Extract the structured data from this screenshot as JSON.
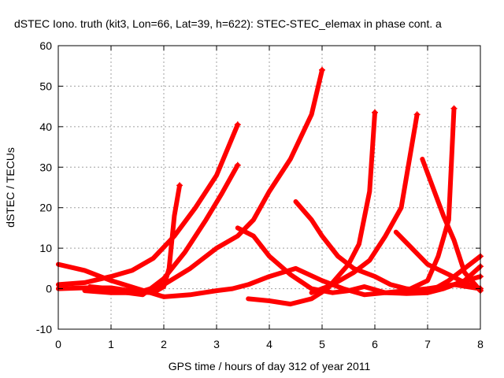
{
  "chart_data": {
    "type": "scatter",
    "title": "dSTEC Iono. truth (kit3, Lon=66, Lat=39, h=622): STEC-STEC_elemax in phase cont. a",
    "xlabel": "GPS time / hours of day 312 of year 2011",
    "ylabel": "dSTEC  / TECUs",
    "xlim": [
      0,
      8
    ],
    "ylim": [
      -10,
      60
    ],
    "xticks": [
      "0",
      "1",
      "2",
      "3",
      "4",
      "5",
      "6",
      "7",
      "8"
    ],
    "yticks": [
      "-10",
      "0",
      "10",
      "20",
      "30",
      "40",
      "50",
      "60"
    ],
    "grid": true,
    "color": "#ff0000",
    "series": [
      {
        "points": [
          [
            0,
            6
          ],
          [
            0.5,
            4.5
          ],
          [
            1,
            2
          ],
          [
            1.5,
            0
          ],
          [
            2,
            -2
          ],
          [
            2.5,
            -1.5
          ],
          [
            3,
            -0.5
          ],
          [
            3.3,
            0
          ],
          [
            3.6,
            1
          ],
          [
            4,
            3
          ],
          [
            4.5,
            5
          ],
          [
            5,
            2
          ],
          [
            5.4,
            0
          ],
          [
            5.8,
            -1.5
          ],
          [
            6.2,
            -1
          ],
          [
            6.6,
            -0.5
          ],
          [
            7,
            0
          ],
          [
            7.5,
            1
          ],
          [
            8,
            0
          ]
        ]
      },
      {
        "points": [
          [
            0,
            0
          ],
          [
            0.5,
            0.2
          ],
          [
            1,
            0.2
          ],
          [
            1.5,
            -0.8
          ],
          [
            1.8,
            -1
          ],
          [
            2,
            0.5
          ],
          [
            2.1,
            5
          ],
          [
            2.2,
            18
          ],
          [
            2.3,
            25.5
          ]
        ]
      },
      {
        "points": [
          [
            0,
            1
          ],
          [
            0.5,
            1.5
          ],
          [
            1,
            3
          ],
          [
            1.4,
            4.5
          ],
          [
            1.8,
            7.5
          ],
          [
            2.2,
            13
          ],
          [
            2.6,
            20
          ],
          [
            3,
            28
          ],
          [
            3.4,
            40.5
          ]
        ]
      },
      {
        "points": [
          [
            0.6,
            0.5
          ],
          [
            1,
            0
          ],
          [
            1.3,
            -1
          ],
          [
            1.6,
            -1.5
          ],
          [
            2,
            2.5
          ],
          [
            2.4,
            9
          ],
          [
            2.8,
            17
          ],
          [
            3.1,
            23.5
          ],
          [
            3.4,
            30.5
          ]
        ]
      },
      {
        "points": [
          [
            0.5,
            -0.5
          ],
          [
            1,
            -1
          ],
          [
            1.5,
            -1
          ],
          [
            2,
            1
          ],
          [
            2.5,
            5
          ],
          [
            3,
            10
          ],
          [
            3.4,
            13
          ],
          [
            3.7,
            17
          ],
          [
            4,
            24
          ],
          [
            4.4,
            32
          ],
          [
            4.8,
            43
          ],
          [
            5,
            54
          ]
        ]
      },
      {
        "points": [
          [
            3.4,
            15
          ],
          [
            3.7,
            13
          ],
          [
            4,
            8
          ],
          [
            4.4,
            3.5
          ],
          [
            4.8,
            0
          ],
          [
            5.2,
            -1
          ],
          [
            5.5,
            -0.5
          ],
          [
            5.8,
            0.5
          ],
          [
            6.2,
            -1
          ],
          [
            6.6,
            -1.2
          ],
          [
            7,
            -1
          ],
          [
            7.3,
            0
          ],
          [
            7.6,
            1.5
          ],
          [
            8,
            3
          ]
        ]
      },
      {
        "points": [
          [
            3.6,
            -2.5
          ],
          [
            4,
            -3
          ],
          [
            4.4,
            -3.8
          ],
          [
            4.8,
            -2.5
          ],
          [
            5.1,
            0
          ],
          [
            5.3,
            3
          ],
          [
            5.5,
            6
          ],
          [
            5.7,
            11
          ],
          [
            5.9,
            24
          ],
          [
            6,
            43.5
          ]
        ]
      },
      {
        "points": [
          [
            4.5,
            21.5
          ],
          [
            4.8,
            17
          ],
          [
            5,
            13
          ],
          [
            5.3,
            8
          ],
          [
            5.6,
            5
          ],
          [
            6,
            3
          ],
          [
            6.3,
            1
          ],
          [
            6.6,
            0
          ],
          [
            7,
            -0.5
          ],
          [
            7.4,
            0.5
          ],
          [
            7.7,
            2
          ],
          [
            8,
            5.5
          ]
        ]
      },
      {
        "points": [
          [
            4.8,
            -1
          ],
          [
            5.2,
            1
          ],
          [
            5.6,
            4
          ],
          [
            5.9,
            7
          ],
          [
            6.2,
            13
          ],
          [
            6.5,
            20
          ],
          [
            6.8,
            43
          ]
        ]
      },
      {
        "points": [
          [
            6.4,
            14
          ],
          [
            6.7,
            10
          ],
          [
            7,
            6
          ],
          [
            7.4,
            3.5
          ],
          [
            7.7,
            1.5
          ],
          [
            8,
            0
          ]
        ]
      },
      {
        "points": [
          [
            6.6,
            -0.5
          ],
          [
            7,
            2
          ],
          [
            7.2,
            8
          ],
          [
            7.4,
            17
          ],
          [
            7.5,
            44.5
          ]
        ]
      },
      {
        "points": [
          [
            6.9,
            32
          ],
          [
            7.1,
            25
          ],
          [
            7.3,
            18
          ],
          [
            7.5,
            12
          ],
          [
            7.7,
            4
          ],
          [
            8,
            -0.5
          ]
        ]
      },
      {
        "points": [
          [
            7,
            -1
          ],
          [
            7.4,
            2
          ],
          [
            7.8,
            6
          ],
          [
            8,
            8
          ]
        ]
      }
    ]
  }
}
